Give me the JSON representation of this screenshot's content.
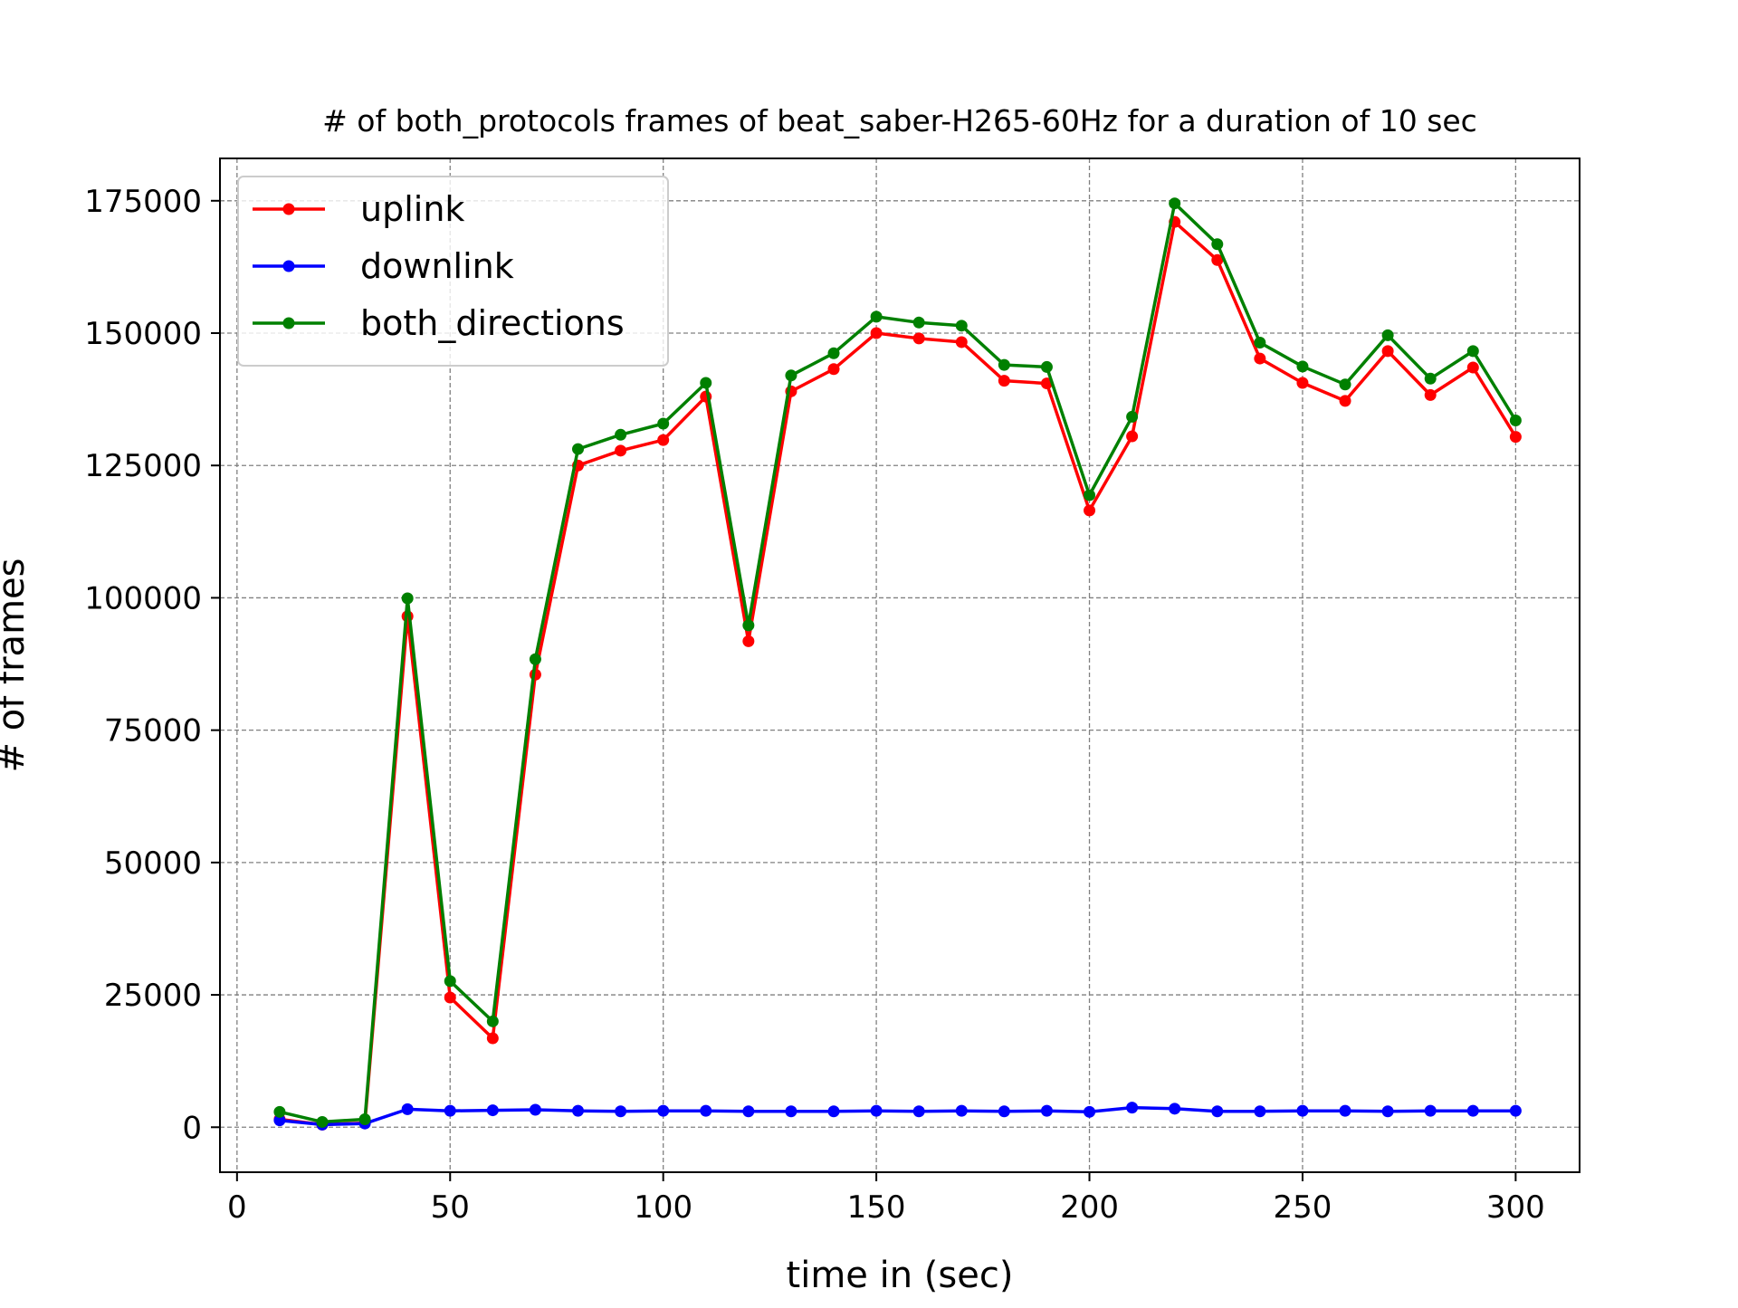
{
  "chart_data": {
    "type": "line",
    "title": "# of both_protocols frames of beat_saber-H265-60Hz for a duration of 10 sec",
    "xlabel": "time in (sec)",
    "ylabel": "# of frames",
    "xlim": [
      -4,
      315
    ],
    "ylim": [
      -8500,
      183000
    ],
    "x_ticks": [
      0,
      50,
      100,
      150,
      200,
      250,
      300
    ],
    "x_tick_labels": [
      "0",
      "50",
      "100",
      "150",
      "200",
      "250",
      "300"
    ],
    "y_ticks": [
      0,
      25000,
      50000,
      75000,
      100000,
      125000,
      150000,
      175000
    ],
    "y_tick_labels": [
      "0",
      "25000",
      "50000",
      "75000",
      "100000",
      "125000",
      "150000",
      "175000"
    ],
    "grid": true,
    "legend_position": "top-left",
    "x": [
      10,
      20,
      30,
      40,
      50,
      60,
      70,
      80,
      90,
      100,
      110,
      120,
      130,
      140,
      150,
      160,
      170,
      180,
      190,
      200,
      210,
      220,
      230,
      240,
      250,
      260,
      270,
      280,
      290,
      300
    ],
    "series": [
      {
        "name": "uplink",
        "color": "#ff0000",
        "values": [
          1500,
          500,
          800,
          96500,
          24500,
          16800,
          85500,
          125000,
          127800,
          129800,
          138000,
          91800,
          139000,
          143200,
          150000,
          149000,
          148300,
          141000,
          140500,
          116500,
          130500,
          171000,
          163800,
          145200,
          140600,
          137200,
          146600,
          138300,
          143500,
          130400
        ]
      },
      {
        "name": "downlink",
        "color": "#0000ff",
        "values": [
          1300,
          500,
          700,
          3400,
          3100,
          3200,
          3300,
          3100,
          3000,
          3100,
          3100,
          3000,
          3000,
          3000,
          3100,
          3000,
          3100,
          3000,
          3100,
          2900,
          3700,
          3500,
          3000,
          3000,
          3100,
          3100,
          3000,
          3100,
          3100,
          3100
        ]
      },
      {
        "name": "both_directions",
        "color": "#008000",
        "values": [
          2900,
          1000,
          1500,
          99900,
          27600,
          20000,
          88400,
          128100,
          130800,
          132900,
          140600,
          94800,
          142000,
          146200,
          153100,
          152000,
          151400,
          144000,
          143600,
          119400,
          134200,
          174500,
          166800,
          148200,
          143700,
          140300,
          149600,
          141400,
          146600,
          133500
        ]
      }
    ]
  }
}
